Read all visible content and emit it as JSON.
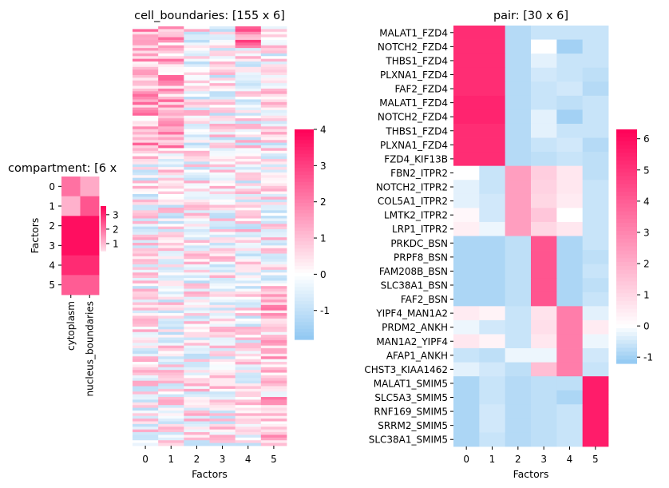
{
  "colors": {
    "low": "#90c8f2",
    "mid": "#ffffff",
    "high": "#ff0057",
    "axis": "#000000"
  },
  "chart_data": [
    {
      "type": "heatmap",
      "title": "compartment: [6 x",
      "ylabel": "Factors",
      "xlabel": "",
      "x_categories": [
        "cytoplasm",
        "nucleus_boundaries"
      ],
      "y_categories": [
        "0",
        "1",
        "2",
        "3",
        "4",
        "5"
      ],
      "values": [
        [
          2.0,
          1.2
        ],
        [
          1.1,
          2.4
        ],
        [
          3.4,
          3.4
        ],
        [
          3.4,
          3.4
        ],
        [
          3.0,
          3.0
        ],
        [
          2.3,
          2.3
        ]
      ],
      "colorbar": {
        "ticks": [
          1,
          2,
          3
        ],
        "range": [
          0.5,
          3.6
        ]
      }
    },
    {
      "type": "heatmap",
      "title": "cell_boundaries: [155 x 6]",
      "xlabel": "Factors",
      "ylabel": "",
      "x_categories": [
        "0",
        "1",
        "2",
        "3",
        "4",
        "5"
      ],
      "rows": 155,
      "colorbar": {
        "ticks": [
          -1,
          0,
          1,
          2,
          3,
          4
        ],
        "range": [
          -1.8,
          4.0
        ]
      }
    },
    {
      "type": "heatmap",
      "title": "pair: [30 x 6]",
      "xlabel": "Factors",
      "ylabel": "",
      "x_categories": [
        "0",
        "1",
        "2",
        "3",
        "4",
        "5"
      ],
      "y_categories": [
        "MALAT1_FZD4",
        "NOTCH2_FZD4",
        "THBS1_FZD4",
        "PLXNA1_FZD4",
        "FAF2_FZD4",
        "MALAT1_FZD4",
        "NOTCH2_FZD4",
        "THBS1_FZD4",
        "PLXNA1_FZD4",
        "FZD4_KIF13B",
        "FBN2_ITPR2",
        "NOTCH2_ITPR2",
        "COL5A1_ITPR2",
        "LMTK2_ITPR2",
        "LRP1_ITPR2",
        "PRKDC_BSN",
        "PRPF8_BSN",
        "FAM208B_BSN",
        "SLC38A1_BSN",
        "FAF2_BSN",
        "YIPF4_MAN1A2",
        "PRDM2_ANKH",
        "MAN1A2_YIPF4",
        "AFAP1_ANKH",
        "CHST3_KIAA1462",
        "MALAT1_SMIM5",
        "SLC5A3_SMIM5",
        "RNF169_SMIM5",
        "SRRM2_SMIM5",
        "SLC38A1_SMIM5"
      ],
      "values": [
        [
          5.2,
          5.2,
          -0.8,
          -0.6,
          -0.6,
          -0.6
        ],
        [
          5.2,
          5.2,
          -0.8,
          0.0,
          -1.0,
          -0.6
        ],
        [
          5.2,
          5.2,
          -0.8,
          -0.3,
          -0.6,
          -0.6
        ],
        [
          5.2,
          5.2,
          -0.8,
          -0.5,
          -0.6,
          -0.7
        ],
        [
          5.2,
          5.2,
          -0.8,
          -0.6,
          -0.5,
          -0.8
        ],
        [
          5.4,
          5.4,
          -0.8,
          -0.6,
          -0.7,
          -0.6
        ],
        [
          5.4,
          5.4,
          -0.8,
          -0.3,
          -1.0,
          -0.6
        ],
        [
          5.2,
          5.2,
          -0.8,
          -0.3,
          -0.6,
          -0.6
        ],
        [
          5.2,
          5.2,
          -0.8,
          -0.6,
          -0.5,
          -0.8
        ],
        [
          5.2,
          5.2,
          -0.8,
          -0.7,
          -0.6,
          -0.7
        ],
        [
          0.0,
          -0.6,
          2.4,
          1.2,
          0.6,
          -0.7
        ],
        [
          -0.3,
          -0.6,
          2.4,
          1.1,
          0.6,
          -0.6
        ],
        [
          -0.3,
          -0.5,
          2.4,
          1.0,
          0.5,
          -0.6
        ],
        [
          0.2,
          -0.5,
          2.4,
          1.4,
          0.0,
          -0.6
        ],
        [
          0.4,
          -0.2,
          2.4,
          1.0,
          0.6,
          -0.6
        ],
        [
          -0.9,
          -0.9,
          -0.7,
          4.2,
          -0.9,
          -0.6
        ],
        [
          -0.9,
          -0.9,
          -0.7,
          4.2,
          -0.9,
          -0.7
        ],
        [
          -0.9,
          -0.9,
          -0.7,
          4.2,
          -0.9,
          -0.6
        ],
        [
          -0.9,
          -0.9,
          -0.7,
          4.2,
          -0.9,
          -0.7
        ],
        [
          -0.9,
          -0.9,
          -0.7,
          4.2,
          -0.9,
          -0.6
        ],
        [
          0.5,
          0.3,
          -0.6,
          0.7,
          3.2,
          -0.3
        ],
        [
          -0.2,
          -0.5,
          -0.6,
          0.8,
          3.2,
          0.5
        ],
        [
          0.6,
          0.3,
          -0.6,
          0.6,
          3.2,
          -0.2
        ],
        [
          -0.6,
          -0.7,
          -0.2,
          -0.2,
          3.2,
          -0.5
        ],
        [
          -0.3,
          -0.5,
          -0.7,
          1.6,
          3.2,
          -0.6
        ],
        [
          -0.9,
          -0.6,
          -0.8,
          -0.7,
          -0.7,
          5.6
        ],
        [
          -0.9,
          -0.6,
          -0.8,
          -0.7,
          -0.9,
          5.6
        ],
        [
          -0.9,
          -0.5,
          -0.8,
          -0.7,
          -0.6,
          5.6
        ],
        [
          -0.9,
          -0.5,
          -0.8,
          -0.7,
          -0.6,
          5.6
        ],
        [
          -0.9,
          -0.6,
          -0.8,
          -0.7,
          -0.6,
          5.6
        ]
      ],
      "colorbar": {
        "ticks": [
          -1,
          0,
          1,
          2,
          3,
          4,
          5,
          6
        ],
        "range": [
          -1.2,
          6.3
        ]
      }
    }
  ]
}
